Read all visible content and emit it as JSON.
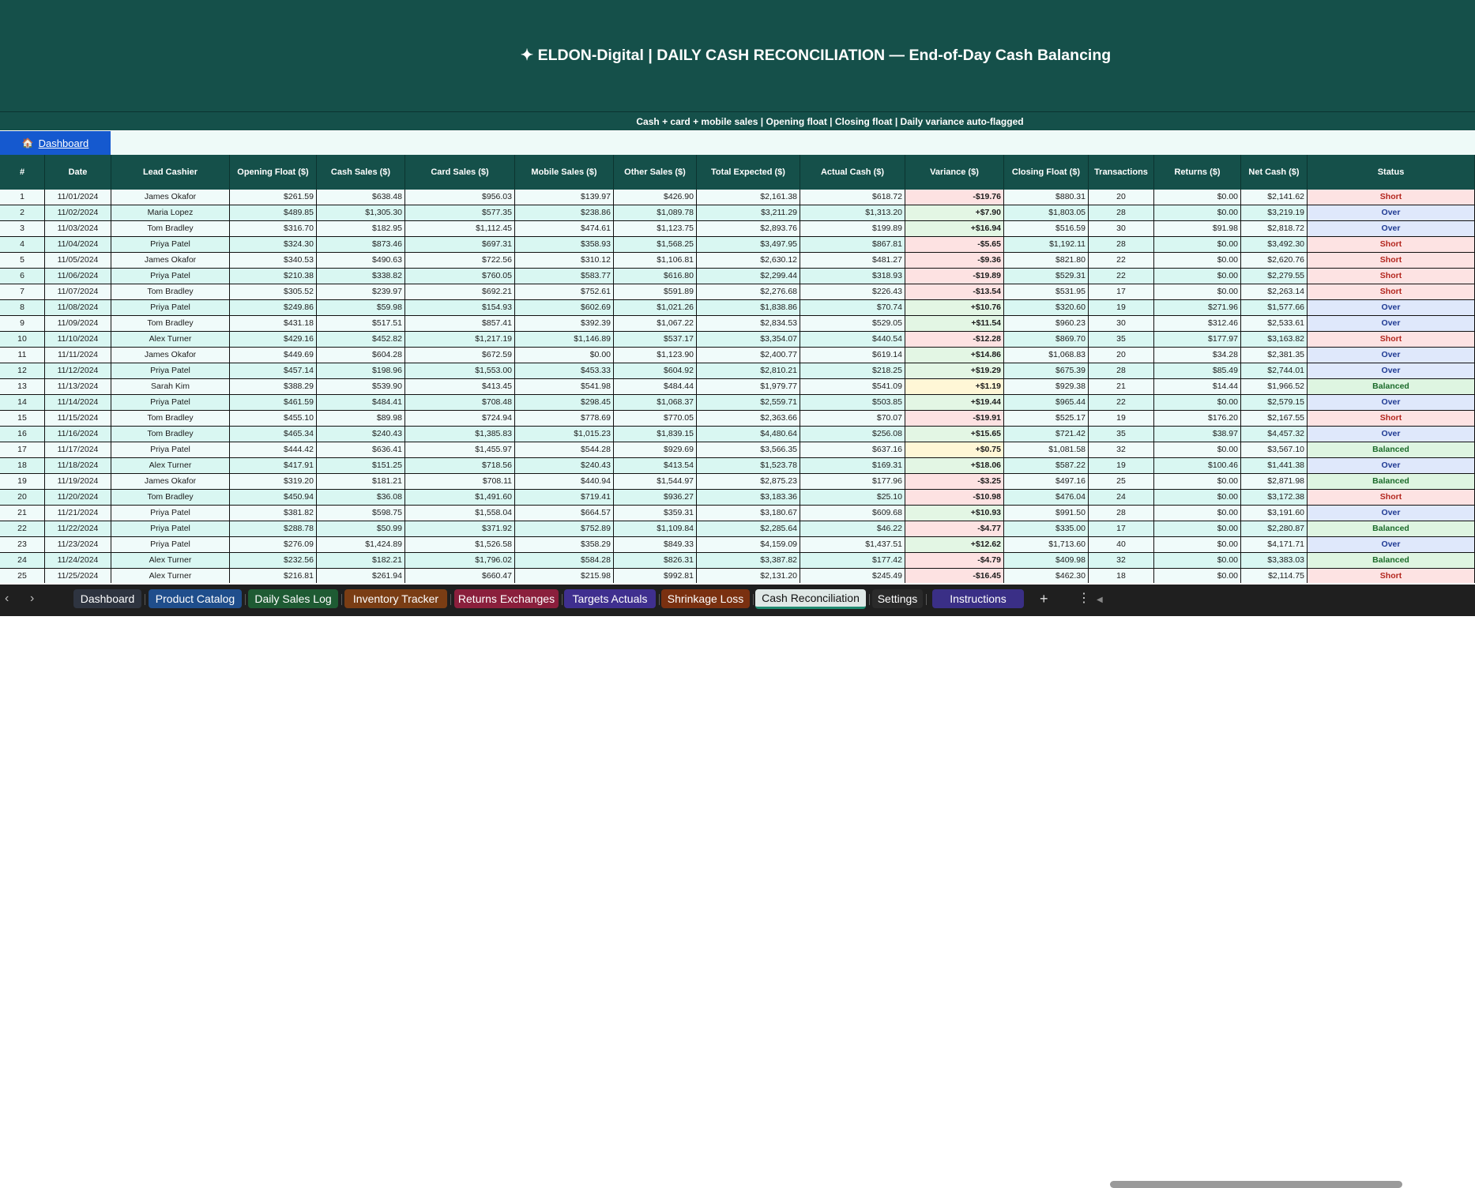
{
  "banner": {
    "title": "✦  ELDON-Digital  |  DAILY CASH RECONCILIATION  —  End-of-Day Cash Balancing"
  },
  "subtitle": "Cash + card + mobile sales  |  Opening float  |  Closing float  |  Daily variance auto-flagged",
  "nav": {
    "dashboard_icon": "🏠",
    "dashboard_label": "Dashboard"
  },
  "columns": [
    "#",
    "Date",
    "Lead Cashier",
    "Opening Float ($)",
    "Cash Sales ($)",
    "Card Sales ($)",
    "Mobile Sales ($)",
    "Other Sales ($)",
    "Total Expected ($)",
    "Actual Cash ($)",
    "Variance ($)",
    "Closing Float ($)",
    "Transactions",
    "Returns ($)",
    "Net Cash ($)",
    "Status"
  ],
  "rows": [
    [
      "1",
      "11/01/2024",
      "James Okafor",
      "$261.59",
      "$638.48",
      "$956.03",
      "$139.97",
      "$426.90",
      "$2,161.38",
      "$618.72",
      "-$19.76",
      "$880.31",
      "20",
      "$0.00",
      "$2,141.62",
      "Short"
    ],
    [
      "2",
      "11/02/2024",
      "Maria Lopez",
      "$489.85",
      "$1,305.30",
      "$577.35",
      "$238.86",
      "$1,089.78",
      "$3,211.29",
      "$1,313.20",
      "+$7.90",
      "$1,803.05",
      "28",
      "$0.00",
      "$3,219.19",
      "Over"
    ],
    [
      "3",
      "11/03/2024",
      "Tom Bradley",
      "$316.70",
      "$182.95",
      "$1,112.45",
      "$474.61",
      "$1,123.75",
      "$2,893.76",
      "$199.89",
      "+$16.94",
      "$516.59",
      "30",
      "$91.98",
      "$2,818.72",
      "Over"
    ],
    [
      "4",
      "11/04/2024",
      "Priya Patel",
      "$324.30",
      "$873.46",
      "$697.31",
      "$358.93",
      "$1,568.25",
      "$3,497.95",
      "$867.81",
      "-$5.65",
      "$1,192.11",
      "28",
      "$0.00",
      "$3,492.30",
      "Short"
    ],
    [
      "5",
      "11/05/2024",
      "James Okafor",
      "$340.53",
      "$490.63",
      "$722.56",
      "$310.12",
      "$1,106.81",
      "$2,630.12",
      "$481.27",
      "-$9.36",
      "$821.80",
      "22",
      "$0.00",
      "$2,620.76",
      "Short"
    ],
    [
      "6",
      "11/06/2024",
      "Priya Patel",
      "$210.38",
      "$338.82",
      "$760.05",
      "$583.77",
      "$616.80",
      "$2,299.44",
      "$318.93",
      "-$19.89",
      "$529.31",
      "22",
      "$0.00",
      "$2,279.55",
      "Short"
    ],
    [
      "7",
      "11/07/2024",
      "Tom Bradley",
      "$305.52",
      "$239.97",
      "$692.21",
      "$752.61",
      "$591.89",
      "$2,276.68",
      "$226.43",
      "-$13.54",
      "$531.95",
      "17",
      "$0.00",
      "$2,263.14",
      "Short"
    ],
    [
      "8",
      "11/08/2024",
      "Priya Patel",
      "$249.86",
      "$59.98",
      "$154.93",
      "$602.69",
      "$1,021.26",
      "$1,838.86",
      "$70.74",
      "+$10.76",
      "$320.60",
      "19",
      "$271.96",
      "$1,577.66",
      "Over"
    ],
    [
      "9",
      "11/09/2024",
      "Tom Bradley",
      "$431.18",
      "$517.51",
      "$857.41",
      "$392.39",
      "$1,067.22",
      "$2,834.53",
      "$529.05",
      "+$11.54",
      "$960.23",
      "30",
      "$312.46",
      "$2,533.61",
      "Over"
    ],
    [
      "10",
      "11/10/2024",
      "Alex Turner",
      "$429.16",
      "$452.82",
      "$1,217.19",
      "$1,146.89",
      "$537.17",
      "$3,354.07",
      "$440.54",
      "-$12.28",
      "$869.70",
      "35",
      "$177.97",
      "$3,163.82",
      "Short"
    ],
    [
      "11",
      "11/11/2024",
      "James Okafor",
      "$449.69",
      "$604.28",
      "$672.59",
      "$0.00",
      "$1,123.90",
      "$2,400.77",
      "$619.14",
      "+$14.86",
      "$1,068.83",
      "20",
      "$34.28",
      "$2,381.35",
      "Over"
    ],
    [
      "12",
      "11/12/2024",
      "Priya Patel",
      "$457.14",
      "$198.96",
      "$1,553.00",
      "$453.33",
      "$604.92",
      "$2,810.21",
      "$218.25",
      "+$19.29",
      "$675.39",
      "28",
      "$85.49",
      "$2,744.01",
      "Over"
    ],
    [
      "13",
      "11/13/2024",
      "Sarah Kim",
      "$388.29",
      "$539.90",
      "$413.45",
      "$541.98",
      "$484.44",
      "$1,979.77",
      "$541.09",
      "+$1.19",
      "$929.38",
      "21",
      "$14.44",
      "$1,966.52",
      "Balanced"
    ],
    [
      "14",
      "11/14/2024",
      "Priya Patel",
      "$461.59",
      "$484.41",
      "$708.48",
      "$298.45",
      "$1,068.37",
      "$2,559.71",
      "$503.85",
      "+$19.44",
      "$965.44",
      "22",
      "$0.00",
      "$2,579.15",
      "Over"
    ],
    [
      "15",
      "11/15/2024",
      "Tom Bradley",
      "$455.10",
      "$89.98",
      "$724.94",
      "$778.69",
      "$770.05",
      "$2,363.66",
      "$70.07",
      "-$19.91",
      "$525.17",
      "19",
      "$176.20",
      "$2,167.55",
      "Short"
    ],
    [
      "16",
      "11/16/2024",
      "Tom Bradley",
      "$465.34",
      "$240.43",
      "$1,385.83",
      "$1,015.23",
      "$1,839.15",
      "$4,480.64",
      "$256.08",
      "+$15.65",
      "$721.42",
      "35",
      "$38.97",
      "$4,457.32",
      "Over"
    ],
    [
      "17",
      "11/17/2024",
      "Priya Patel",
      "$444.42",
      "$636.41",
      "$1,455.97",
      "$544.28",
      "$929.69",
      "$3,566.35",
      "$637.16",
      "+$0.75",
      "$1,081.58",
      "32",
      "$0.00",
      "$3,567.10",
      "Balanced"
    ],
    [
      "18",
      "11/18/2024",
      "Alex Turner",
      "$417.91",
      "$151.25",
      "$718.56",
      "$240.43",
      "$413.54",
      "$1,523.78",
      "$169.31",
      "+$18.06",
      "$587.22",
      "19",
      "$100.46",
      "$1,441.38",
      "Over"
    ],
    [
      "19",
      "11/19/2024",
      "James Okafor",
      "$319.20",
      "$181.21",
      "$708.11",
      "$440.94",
      "$1,544.97",
      "$2,875.23",
      "$177.96",
      "-$3.25",
      "$497.16",
      "25",
      "$0.00",
      "$2,871.98",
      "Balanced"
    ],
    [
      "20",
      "11/20/2024",
      "Tom Bradley",
      "$450.94",
      "$36.08",
      "$1,491.60",
      "$719.41",
      "$936.27",
      "$3,183.36",
      "$25.10",
      "-$10.98",
      "$476.04",
      "24",
      "$0.00",
      "$3,172.38",
      "Short"
    ],
    [
      "21",
      "11/21/2024",
      "Priya Patel",
      "$381.82",
      "$598.75",
      "$1,558.04",
      "$664.57",
      "$359.31",
      "$3,180.67",
      "$609.68",
      "+$10.93",
      "$991.50",
      "28",
      "$0.00",
      "$3,191.60",
      "Over"
    ],
    [
      "22",
      "11/22/2024",
      "Priya Patel",
      "$288.78",
      "$50.99",
      "$371.92",
      "$752.89",
      "$1,109.84",
      "$2,285.64",
      "$46.22",
      "-$4.77",
      "$335.00",
      "17",
      "$0.00",
      "$2,280.87",
      "Balanced"
    ],
    [
      "23",
      "11/23/2024",
      "Priya Patel",
      "$276.09",
      "$1,424.89",
      "$1,526.58",
      "$358.29",
      "$849.33",
      "$4,159.09",
      "$1,437.51",
      "+$12.62",
      "$1,713.60",
      "40",
      "$0.00",
      "$4,171.71",
      "Over"
    ],
    [
      "24",
      "11/24/2024",
      "Alex Turner",
      "$232.56",
      "$182.21",
      "$1,796.02",
      "$584.28",
      "$826.31",
      "$3,387.82",
      "$177.42",
      "-$4.79",
      "$409.98",
      "32",
      "$0.00",
      "$3,383.03",
      "Balanced"
    ],
    [
      "25",
      "11/25/2024",
      "Alex Turner",
      "$216.81",
      "$261.94",
      "$660.47",
      "$215.98",
      "$992.81",
      "$2,131.20",
      "$245.49",
      "-$16.45",
      "$462.30",
      "18",
      "$0.00",
      "$2,114.75",
      "Short"
    ]
  ],
  "colors": {
    "header_bg": "#15504a",
    "row_a": "#f0fbfa",
    "row_b": "#d9f7f2",
    "variance_short": "#fde2e2",
    "variance_over_small": "#fff7d6",
    "variance_over": "#e3f6e4",
    "status_short_bg": "#fde3e3",
    "status_short_text": "#b3261e",
    "status_over_bg": "#dfe8fb",
    "status_over_text": "#1f3a93",
    "status_balanced_bg": "#def5e1",
    "status_balanced_text": "#1b6b2a"
  },
  "tabs": [
    {
      "label": "Dashboard",
      "color": "#2e3440",
      "active": false
    },
    {
      "label": "Product Catalog",
      "color": "#1f4e8c",
      "active": false
    },
    {
      "label": "Daily Sales Log",
      "color": "#1e5b33",
      "active": false
    },
    {
      "label": "Inventory Tracker",
      "color": "#7a3d14",
      "active": false
    },
    {
      "label": "Returns Exchanges",
      "color": "#8a1f3c",
      "active": false
    },
    {
      "label": "Targets Actuals",
      "color": "#3f2f8f",
      "active": false
    },
    {
      "label": "Shrinkage Loss",
      "color": "#7a3010",
      "active": false
    },
    {
      "label": "Cash Reconciliation",
      "color": "#dfe8e6",
      "active": true
    },
    {
      "label": "Settings",
      "color": "#2a2a2a",
      "active": false
    },
    {
      "label": "Instructions",
      "color": "#3a2f86",
      "active": false
    }
  ],
  "tabbar_controls": {
    "prev": "‹",
    "next": "›",
    "add": "+",
    "more": "⋮",
    "scroll_left": "◀"
  }
}
